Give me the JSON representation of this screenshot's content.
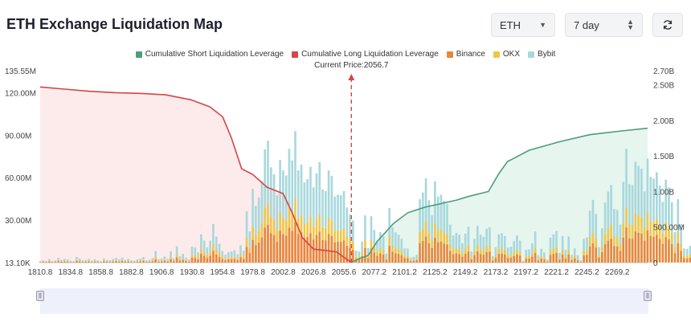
{
  "header": {
    "title": "ETH Exchange Liquidation Map",
    "coin_select": "ETH",
    "range_select": "7 day",
    "refresh_icon": "refresh-icon"
  },
  "colors": {
    "short": "#4c9e7a",
    "long": "#d64545",
    "binance": "#e8873a",
    "okx": "#efc64a",
    "bybit": "#a8d8dc"
  },
  "chart_data": {
    "type": "bar",
    "legend": [
      {
        "key": "short",
        "label": "Cumulative Short Liquidation Leverage"
      },
      {
        "key": "long",
        "label": "Cumulative Long Liquidation Leverage"
      },
      {
        "key": "binance",
        "label": "Binance"
      },
      {
        "key": "okx",
        "label": "OKX"
      },
      {
        "key": "bybit",
        "label": "Bybit"
      }
    ],
    "legend_position": "top-center",
    "current_price_label": "Current Price:2056.7",
    "current_price": 2056.7,
    "x_ticks": [
      "1810.8",
      "1834.8",
      "1858.8",
      "1882.8",
      "1906.8",
      "1930.8",
      "1954.8",
      "1978.8",
      "2002.8",
      "2026.8",
      "2055.6",
      "2077.2",
      "2101.2",
      "2125.2",
      "2149.2",
      "2173.2",
      "2197.2",
      "2221.2",
      "2245.2",
      "2269.2"
    ],
    "x_range": [
      1810.8,
      2290.8
    ],
    "y_left_ticks": [
      "13.10K",
      "30.00M",
      "60.00M",
      "90.00M",
      "120.00M",
      "135.55M"
    ],
    "y_left_values": [
      0.0131,
      30,
      60,
      90,
      120,
      135.55
    ],
    "y_left_range": [
      0,
      135.55
    ],
    "y_right_ticks": [
      "0",
      "500.00M",
      "1.00B",
      "1.50B",
      "2.00B",
      "2.50B",
      "2.70B"
    ],
    "y_right_values": [
      0,
      0.5,
      1.0,
      1.5,
      2.0,
      2.5,
      2.7
    ],
    "y_right_range": [
      0,
      2.7
    ],
    "long_curve": {
      "x": [
        1810.8,
        1830,
        1850,
        1870,
        1890,
        1910,
        1930,
        1945,
        1955,
        1962,
        1970,
        1978.8,
        1990,
        2002.8,
        2010,
        2018,
        2026.8,
        2036,
        2045,
        2052,
        2056.7
      ],
      "y": [
        2.47,
        2.44,
        2.41,
        2.39,
        2.38,
        2.36,
        2.29,
        2.19,
        2.05,
        1.75,
        1.32,
        1.24,
        1.06,
        0.97,
        0.7,
        0.35,
        0.19,
        0.17,
        0.15,
        0.06,
        0.0
      ]
    },
    "short_curve": {
      "x": [
        2056.7,
        2062,
        2070,
        2077.2,
        2090,
        2101.2,
        2115,
        2125.2,
        2140,
        2149.2,
        2165,
        2173.2,
        2180,
        2197.2,
        2221.2,
        2245.2,
        2269.2,
        2290.8
      ],
      "y": [
        0.0,
        0.05,
        0.1,
        0.3,
        0.55,
        0.7,
        0.78,
        0.82,
        0.88,
        0.93,
        1.0,
        1.25,
        1.42,
        1.58,
        1.7,
        1.8,
        1.85,
        1.89
      ]
    },
    "bars": {
      "bin_width": 2.4,
      "x_start": 1810.8,
      "binance": [
        0.3,
        0.5,
        0.4,
        0.8,
        0.3,
        0.5,
        1.0,
        0.6,
        0.8,
        0.7,
        0.4,
        0.3,
        1.2,
        0.9,
        0.5,
        0.6,
        0.8,
        0.4,
        0.7,
        0.5,
        0.3,
        0.9,
        0.6,
        0.5,
        0.8,
        1.0,
        0.7,
        1.1,
        0.6,
        0.8,
        0.5,
        0.4,
        0.7,
        0.9,
        1.2,
        0.5,
        0.6,
        1.0,
        2.5,
        0.7,
        0.9,
        1.3,
        0.8,
        2.5,
        0.9,
        3.6,
        1.4,
        1.9,
        1.1,
        0.7,
        3.5,
        3.3,
        2.2,
        6.2,
        4.8,
        3.3,
        4.8,
        8.4,
        5.7,
        4.1,
        2.5,
        1.7,
        2.3,
        2.4,
        2.7,
        1.8,
        3.8,
        2.6,
        11.2,
        6.8,
        16.1,
        12.4,
        14.2,
        17.8,
        24.7,
        26.6,
        20.8,
        19.3,
        14.7,
        22.4,
        20.1,
        19.0,
        24.8,
        22.3,
        28.7,
        20.1,
        21.4,
        17.5,
        18.2,
        20.9,
        16.4,
        19.5,
        21.9,
        16.0,
        15.6,
        20.1,
        18.9,
        14.4,
        14.8,
        14.7,
        15.6,
        12.0,
        10.5,
        9.2,
        2.6,
        2.4,
        4.6,
        10.3,
        3.2,
        10.1,
        7.1,
        4.8,
        6.6,
        5.7,
        2.0,
        11.9,
        7.7,
        6.6,
        6.1,
        5.2,
        3.1,
        3.1,
        1.1,
        1.3,
        1.7,
        13.8,
        15.3,
        18.4,
        13.6,
        10.3,
        17.7,
        14.4,
        14.8,
        13.5,
        12.8,
        8.3,
        5.9,
        6.5,
        6.1,
        4.2,
        6.3,
        7.8,
        2.4,
        5.2,
        8.0,
        6.1,
        5.6,
        7.4,
        7.7,
        1.4,
        3.3,
        6.2,
        6.4,
        5.8,
        3.3,
        3.5,
        4.7,
        5.9,
        4.8,
        0.4,
        2.8,
        2.9,
        4.2,
        6.8,
        1.6,
        3.0,
        2.2,
        0.7,
        5.5,
        6.2,
        6.9,
        2.1,
        5.8,
        2.8,
        5.7,
        1.7,
        3.1,
        1.6,
        0.5,
        5.2,
        5.5,
        11.3,
        13.7,
        10.6,
        3.4,
        7.5,
        13.1,
        15.5,
        16.9,
        11.7,
        11.5,
        8.3,
        17.6,
        24.8,
        17.1,
        16.9,
        22.0,
        21.1,
        20.5,
        15.5,
        22.7,
        18.7,
        18.3,
        19.7,
        16.8,
        13.3,
        18.1,
        16.4,
        13.2,
        6.7,
        13.8,
        8.4,
        3.1,
        3.0,
        3.6,
        9.8,
        3.1,
        4.9,
        3.9,
        5.4,
        5.4,
        7.4,
        1.7,
        4.0,
        4.9,
        2.4,
        5.6,
        6.0,
        3.9,
        6.1,
        3.7,
        3.2,
        3.2,
        1.4,
        1.4,
        4.1,
        1.6,
        2.7,
        1.7,
        2.2,
        3.3,
        2.2,
        2.8,
        1.4,
        1.6,
        3.1,
        3.0,
        3.3,
        3.9,
        1.2,
        1.6,
        2.4,
        3.5,
        1.6,
        4.6,
        4.6,
        4.8,
        3.7,
        2.9,
        2.3,
        3.4,
        1.0,
        4.4,
        4.7,
        1.1,
        1.2,
        1.9,
        1.0,
        1.6,
        3.6,
        1.9,
        1.7,
        3.0,
        1.9,
        2.3,
        2.4,
        3.0,
        1.9,
        3.4,
        1.5,
        2.7,
        1.9,
        3.5,
        2.5,
        2.6,
        1.0,
        1.4,
        1.0,
        2.4
      ],
      "okx": [
        0.2,
        0.3,
        0.2,
        0.4,
        0.2,
        0.3,
        0.6,
        0.3,
        0.5,
        0.4,
        0.2,
        0.2,
        0.7,
        0.5,
        0.3,
        0.3,
        0.5,
        0.2,
        0.4,
        0.3,
        0.2,
        0.5,
        0.3,
        0.3,
        0.5,
        0.6,
        0.4,
        0.6,
        0.3,
        0.5,
        0.3,
        0.2,
        0.4,
        0.5,
        0.7,
        0.3,
        0.3,
        0.6,
        1.5,
        0.4,
        0.5,
        0.8,
        0.5,
        1.4,
        0.5,
        2.0,
        0.8,
        1.1,
        0.6,
        0.4,
        2.0,
        1.9,
        1.3,
        3.5,
        2.8,
        1.9,
        2.7,
        4.8,
        3.2,
        2.4,
        1.4,
        1.0,
        1.3,
        1.4,
        1.5,
        1.0,
        2.2,
        1.5,
        6.4,
        3.9,
        9.2,
        7.1,
        8.1,
        10.2,
        14.1,
        15.2,
        11.9,
        11.0,
        8.4,
        12.8,
        11.5,
        10.9,
        14.2,
        12.7,
        16.4,
        11.5,
        12.2,
        10.0,
        10.4,
        11.9,
        9.4,
        11.1,
        12.5,
        9.1,
        8.9,
        11.5,
        10.8,
        8.2,
        8.5,
        8.4,
        8.9,
        6.9,
        6.0,
        5.3,
        1.5,
        1.4,
        2.6,
        5.9,
        1.8,
        5.8,
        4.1,
        2.7,
        3.8,
        3.3,
        1.1,
        6.8,
        4.4,
        3.8,
        3.5,
        3.0,
        1.8,
        1.8,
        0.6,
        0.7,
        1.0,
        7.9,
        8.7,
        10.5,
        7.8,
        5.9,
        10.1,
        8.2,
        8.5,
        7.7,
        7.3,
        4.7,
        3.4,
        3.7,
        3.5,
        2.4,
        3.6,
        4.5,
        1.4,
        3.0,
        4.6,
        3.5,
        3.2,
        4.2,
        4.4,
        0.8,
        1.9,
        3.5,
        3.7,
        3.3,
        1.9,
        2.0,
        2.7,
        3.4,
        2.7,
        0.2,
        1.6,
        1.7,
        2.4,
        3.9,
        0.9,
        1.7,
        1.3,
        0.4,
        3.1,
        3.5,
        3.9,
        1.2,
        3.3,
        1.6,
        3.3,
        1.0,
        1.8,
        0.9,
        0.3,
        3.0,
        3.1,
        6.5,
        7.8,
        6.1,
        1.9,
        4.3,
        7.5,
        8.9,
        9.7,
        6.7,
        6.6,
        4.7,
        10.1,
        14.2,
        9.8,
        9.7,
        12.6,
        12.1,
        11.7,
        8.9,
        13.0,
        10.7,
        10.5,
        11.3,
        9.6,
        7.6,
        10.3,
        9.4,
        7.5,
        3.8,
        7.9,
        4.8,
        1.8,
        1.7,
        2.1,
        5.6,
        1.8,
        2.8,
        2.2,
        3.1,
        3.1,
        4.2,
        1.0,
        2.3,
        2.8,
        1.4,
        3.2,
        3.4,
        2.2,
        3.5,
        2.1,
        1.8,
        1.8,
        0.8,
        0.8,
        2.3,
        0.9,
        1.5,
        1.0,
        1.3,
        1.9,
        1.3,
        1.6,
        0.8,
        0.9,
        1.8,
        1.7,
        1.9,
        2.2,
        0.7,
        0.9,
        1.4,
        2.0,
        0.9,
        2.6,
        2.6,
        2.7,
        2.1,
        1.7,
        1.3,
        1.9,
        0.6,
        2.5,
        2.7,
        0.6,
        0.7,
        1.1,
        0.6,
        0.9,
        2.1,
        1.1,
        1.0,
        1.7,
        1.1,
        1.3,
        1.4,
        1.7,
        1.1,
        1.9,
        0.9,
        1.5,
        1.1,
        2.0,
        1.4,
        1.5,
        0.6,
        0.8,
        0.6,
        1.4
      ],
      "bybit": [
        0.5,
        0.8,
        0.6,
        1.3,
        0.5,
        0.8,
        1.7,
        1.0,
        1.3,
        1.2,
        0.7,
        0.5,
        2.0,
        1.5,
        0.8,
        1.0,
        1.3,
        0.7,
        1.2,
        0.8,
        0.5,
        1.5,
        1.0,
        0.8,
        1.3,
        1.7,
        1.2,
        1.8,
        1.0,
        1.3,
        0.8,
        0.7,
        1.2,
        1.5,
        2.0,
        0.8,
        1.0,
        1.7,
        4.2,
        1.2,
        1.5,
        2.2,
        1.3,
        4.1,
        1.5,
        5.9,
        2.3,
        3.1,
        1.8,
        1.2,
        5.8,
        5.5,
        3.7,
        10.3,
        8.0,
        5.5,
        8.0,
        14.0,
        9.5,
        6.8,
        4.2,
        2.8,
        3.8,
        4.0,
        4.5,
        3.0,
        6.3,
        4.3,
        18.6,
        11.3,
        26.8,
        20.6,
        23.6,
        29.6,
        41.2,
        44.3,
        34.6,
        32.1,
        24.5,
        37.3,
        33.5,
        31.6,
        41.3,
        37.1,
        47.8,
        33.5,
        35.6,
        29.1,
        30.3,
        34.8,
        27.3,
        32.5,
        36.5,
        26.6,
        26.0,
        33.5,
        31.5,
        24.0,
        24.6,
        24.5,
        26.0,
        20.0,
        17.5,
        15.3,
        4.3,
        4.0,
        7.6,
        17.1,
        5.3,
        16.8,
        11.8,
        8.0,
        11.0,
        9.5,
        3.3,
        19.8,
        12.8,
        11.0,
        10.1,
        8.6,
        5.1,
        5.1,
        1.8,
        2.1,
        2.8,
        23.0,
        25.5,
        30.6,
        22.6,
        17.1,
        29.5,
        24.0,
        24.6,
        22.5,
        21.3,
        13.8,
        9.8,
        10.8,
        10.1,
        7.0,
        10.5,
        13.0,
        4.0,
        8.6,
        13.3,
        10.1,
        9.3,
        12.3,
        12.8,
        2.3,
        5.5,
        10.3,
        10.6,
        9.6,
        5.5,
        5.8,
        7.8,
        9.8,
        8.0,
        0.6,
        4.6,
        4.8,
        7.0,
        11.3,
        2.6,
        5.0,
        3.6,
        1.1,
        9.1,
        10.3,
        11.5,
        3.5,
        9.6,
        4.6,
        9.5,
        2.8,
        5.1,
        2.6,
        0.8,
        8.6,
        9.1,
        18.8,
        22.8,
        17.6,
        5.6,
        12.5,
        21.8,
        25.8,
        28.1,
        19.5,
        19.1,
        13.8,
        29.3,
        41.3,
        28.5,
        28.1,
        36.6,
        35.1,
        34.1,
        25.8,
        37.8,
        31.1,
        30.5,
        32.8,
        28.0,
        22.1,
        30.1,
        27.3,
        22.0,
        11.1,
        23.0,
        14.0,
        5.1,
        5.0,
        6.0,
        16.3,
        5.1,
        8.1,
        6.5,
        9.0,
        9.0,
        12.3,
        2.8,
        6.6,
        8.1,
        4.0,
        9.3,
        10.0,
        6.5,
        10.1,
        6.1,
        5.3,
        5.3,
        2.3,
        2.3,
        6.8,
        2.6,
        4.5,
        2.8,
        3.6,
        5.5,
        3.6,
        4.6,
        2.3,
        2.6,
        5.1,
        5.0,
        5.5,
        6.5,
        2.0,
        2.6,
        4.0,
        5.8,
        2.6,
        7.6,
        7.6,
        8.0,
        6.1,
        4.8,
        3.8,
        5.6,
        1.7,
        7.3,
        7.8,
        1.8,
        2.0,
        3.1,
        1.7,
        2.6,
        6.0,
        3.1,
        2.8,
        5.0,
        3.1,
        3.8,
        4.0,
        5.0,
        3.1,
        5.6,
        2.5,
        4.5,
        3.1,
        5.8,
        4.1,
        4.3,
        1.7,
        2.3,
        1.7,
        4.0
      ]
    }
  }
}
